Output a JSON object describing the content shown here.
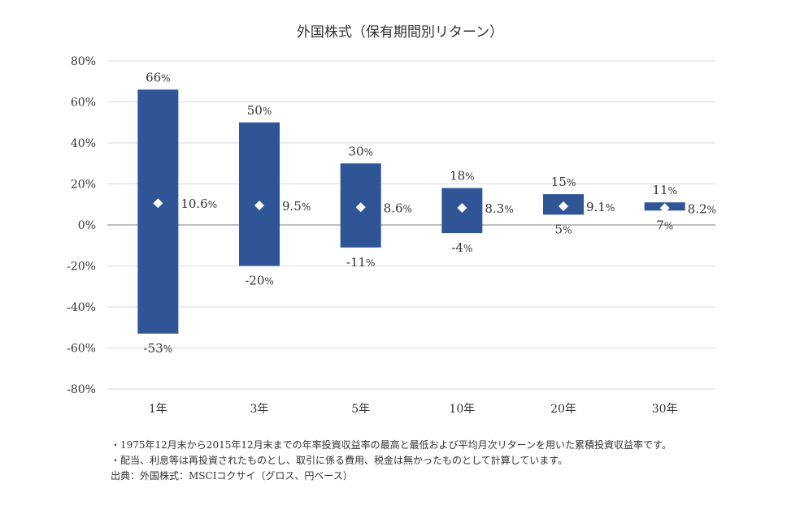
{
  "chart_data": {
    "type": "bar",
    "title": "外国株式（保有期間別リターン）",
    "xlabel": "",
    "ylabel": "",
    "ylim": [
      -80,
      80
    ],
    "yticks": [
      80,
      60,
      40,
      20,
      0,
      -20,
      -40,
      -60,
      -80
    ],
    "ytick_labels": [
      "80%",
      "60%",
      "40%",
      "20%",
      "0%",
      "-20%",
      "-40%",
      "-60%",
      "-80%"
    ],
    "grid": true,
    "categories": [
      "1年",
      "3年",
      "5年",
      "10年",
      "20年",
      "30年"
    ],
    "series": [
      {
        "values_high": [
          66,
          50,
          30,
          18,
          15,
          11
        ]
      },
      {
        "values_low": [
          -53,
          -20,
          -11,
          -4,
          5,
          7
        ]
      },
      {
        "values_avg": [
          10.6,
          9.5,
          8.6,
          8.3,
          9.1,
          8.2
        ]
      }
    ],
    "high_labels": [
      "66",
      "50",
      "30",
      "18",
      "15",
      "11"
    ],
    "low_labels": [
      "-53",
      "-20",
      "-11",
      "-4",
      "5",
      "7"
    ],
    "avg_labels": [
      "10.6",
      "9.5",
      "8.6",
      "8.3",
      "9.1",
      "8.2"
    ],
    "percent_suffix": "%",
    "colors": {
      "bar": "#2f5597",
      "marker": "#ffffff",
      "grid": "#d9d9d9",
      "axis": "#7f7f7f",
      "text": "#333333"
    }
  },
  "notes": {
    "line1": "・1975年12月末から2015年12月末までの年率投資収益率の最高と最低および平均月次リターンを用いた累積投資収益率です。",
    "line2": "・配当、利息等は再投資されたものとし、取引に係る費用、税金は無かったものとして計算しています。",
    "source": "出典：外国株式：MSCIコクサイ（グロス、円ベース）"
  }
}
